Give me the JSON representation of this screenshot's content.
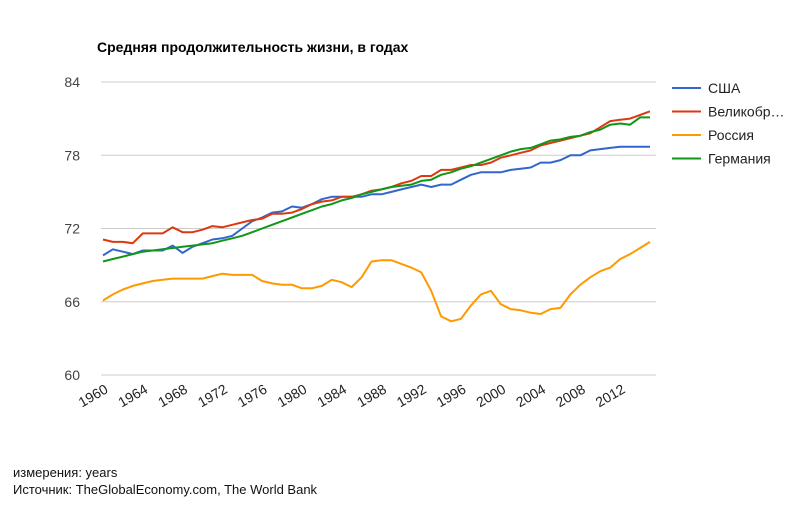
{
  "chart_data": {
    "type": "line",
    "title": "Средняя продолжительность жизни, в годах",
    "xlabel": "",
    "ylabel": "",
    "ylim": [
      60,
      84
    ],
    "xlim": [
      1960,
      2015
    ],
    "yticks": [
      84,
      78,
      72,
      66,
      60
    ],
    "xticks": [
      "1960",
      "1964",
      "1968",
      "1972",
      "1976",
      "1980",
      "1984",
      "1988",
      "1992",
      "1996",
      "2000",
      "2004",
      "2008",
      "2012"
    ],
    "grid": true,
    "legend_position": "right",
    "x": [
      1960,
      1961,
      1962,
      1963,
      1964,
      1965,
      1966,
      1967,
      1968,
      1969,
      1970,
      1971,
      1972,
      1973,
      1974,
      1975,
      1976,
      1977,
      1978,
      1979,
      1980,
      1981,
      1982,
      1983,
      1984,
      1985,
      1986,
      1987,
      1988,
      1989,
      1990,
      1991,
      1992,
      1993,
      1994,
      1995,
      1996,
      1997,
      1998,
      1999,
      2000,
      2001,
      2002,
      2003,
      2004,
      2005,
      2006,
      2007,
      2008,
      2009,
      2010,
      2011,
      2012,
      2013,
      2014,
      2015
    ],
    "series": [
      {
        "name": "США",
        "color": "#3366cc",
        "values": [
          69.8,
          70.3,
          70.1,
          69.9,
          70.2,
          70.2,
          70.2,
          70.6,
          70.0,
          70.5,
          70.8,
          71.1,
          71.2,
          71.4,
          72.0,
          72.6,
          72.9,
          73.3,
          73.4,
          73.8,
          73.7,
          74.0,
          74.4,
          74.6,
          74.6,
          74.6,
          74.6,
          74.8,
          74.8,
          75.0,
          75.2,
          75.4,
          75.6,
          75.4,
          75.6,
          75.6,
          76.0,
          76.4,
          76.6,
          76.6,
          76.6,
          76.8,
          76.9,
          77.0,
          77.4,
          77.4,
          77.6,
          78.0,
          78.0,
          78.4,
          78.5,
          78.6,
          78.7,
          78.7,
          78.7,
          78.7
        ]
      },
      {
        "name": "Великобр…",
        "color": "#dc3912",
        "values": [
          71.1,
          70.9,
          70.9,
          70.8,
          71.6,
          71.6,
          71.6,
          72.1,
          71.7,
          71.7,
          71.9,
          72.2,
          72.1,
          72.3,
          72.5,
          72.7,
          72.8,
          73.2,
          73.2,
          73.3,
          73.6,
          74.0,
          74.2,
          74.3,
          74.6,
          74.6,
          74.8,
          75.1,
          75.2,
          75.4,
          75.7,
          75.9,
          76.3,
          76.3,
          76.8,
          76.8,
          77.0,
          77.2,
          77.2,
          77.4,
          77.8,
          78.0,
          78.2,
          78.4,
          78.8,
          79.0,
          79.2,
          79.4,
          79.6,
          79.8,
          80.3,
          80.8,
          80.9,
          81.0,
          81.3,
          81.6
        ]
      },
      {
        "name": "Россия",
        "color": "#ff9900",
        "values": [
          66.1,
          66.6,
          67.0,
          67.3,
          67.5,
          67.7,
          67.8,
          67.9,
          67.9,
          67.9,
          67.9,
          68.1,
          68.3,
          68.2,
          68.2,
          68.2,
          67.7,
          67.5,
          67.4,
          67.4,
          67.1,
          67.1,
          67.3,
          67.8,
          67.6,
          67.2,
          68.0,
          69.3,
          69.4,
          69.4,
          69.1,
          68.8,
          68.4,
          66.9,
          64.8,
          64.4,
          64.6,
          65.7,
          66.6,
          66.9,
          65.8,
          65.4,
          65.3,
          65.1,
          65.0,
          65.4,
          65.5,
          66.6,
          67.4,
          68.0,
          68.5,
          68.8,
          69.5,
          69.9,
          70.4,
          70.9
        ]
      },
      {
        "name": "Германия",
        "color": "#109618",
        "values": [
          69.3,
          69.5,
          69.7,
          69.9,
          70.1,
          70.2,
          70.3,
          70.4,
          70.5,
          70.6,
          70.7,
          70.8,
          71.0,
          71.2,
          71.4,
          71.7,
          72.0,
          72.3,
          72.6,
          72.9,
          73.2,
          73.5,
          73.8,
          74.0,
          74.3,
          74.5,
          74.8,
          75.0,
          75.2,
          75.4,
          75.5,
          75.6,
          75.9,
          76.0,
          76.4,
          76.6,
          76.9,
          77.1,
          77.4,
          77.7,
          78.0,
          78.3,
          78.5,
          78.6,
          78.9,
          79.2,
          79.3,
          79.5,
          79.6,
          79.9,
          80.1,
          80.5,
          80.6,
          80.5,
          81.1,
          81.1
        ]
      }
    ]
  },
  "footer": {
    "units": "измерения: years",
    "source": "Источник: TheGlobalEconomy.com, The World Bank"
  }
}
